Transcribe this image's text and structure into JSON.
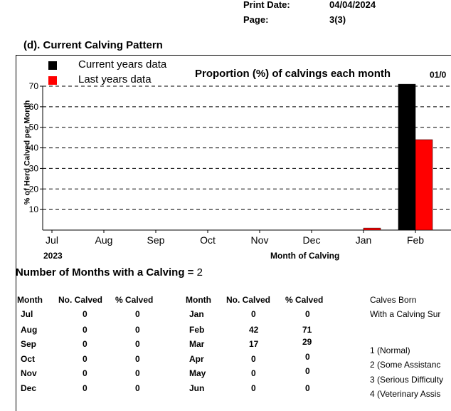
{
  "header": {
    "print_date_label": "Print Date:",
    "print_date_value": "04/04/2024",
    "page_label": "Page:",
    "page_value": "3(3)"
  },
  "section": {
    "title": "(d). Current Calving Pattern"
  },
  "chart_data": {
    "type": "bar",
    "title": "Proportion (%) of calvings each month",
    "title_suffix": "01/0",
    "xlabel": "Month of Calving",
    "year_label": "2023",
    "ylabel": "% of Herd Calved per Month",
    "ylim": [
      0,
      70
    ],
    "yticks": [
      10,
      20,
      30,
      40,
      50,
      60,
      70
    ],
    "grid": "dashed horizontal",
    "legend_position": "top-left",
    "categories": [
      "Jul",
      "Aug",
      "Sep",
      "Oct",
      "Nov",
      "Dec",
      "Jan",
      "Feb"
    ],
    "series": [
      {
        "name": "Current years data",
        "color": "#000000",
        "values": [
          0,
          0,
          0,
          0,
          0,
          0,
          0,
          71
        ]
      },
      {
        "name": "Last years data",
        "color": "#ff0000",
        "values": [
          0,
          0,
          0,
          0,
          0,
          0,
          1,
          44
        ]
      }
    ]
  },
  "months_summary": {
    "label": "Number of Months with a Calving = ",
    "value": "2"
  },
  "table": {
    "headers": [
      "Month",
      "No. Calved",
      "% Calved"
    ],
    "left_rows": [
      [
        "Jul",
        "0",
        "0"
      ],
      [
        "Aug",
        "0",
        "0"
      ],
      [
        "Sep",
        "0",
        "0"
      ],
      [
        "Oct",
        "0",
        "0"
      ],
      [
        "Nov",
        "0",
        "0"
      ],
      [
        "Dec",
        "0",
        "0"
      ]
    ],
    "right_rows": [
      [
        "Jan",
        "0",
        "0"
      ],
      [
        "Feb",
        "42",
        "71"
      ],
      [
        "Mar",
        "17",
        "29"
      ],
      [
        "Apr",
        "0",
        "0"
      ],
      [
        "May",
        "0",
        "0"
      ],
      [
        "Jun",
        "0",
        "0"
      ]
    ]
  },
  "calves_born": {
    "title": "Calves Born",
    "subtitle": "With a Calving Sur",
    "items": [
      "1 (Normal)",
      "2 (Some Assistanc",
      "3 (Serious Difficulty",
      "4 (Veterinary Assis"
    ]
  }
}
